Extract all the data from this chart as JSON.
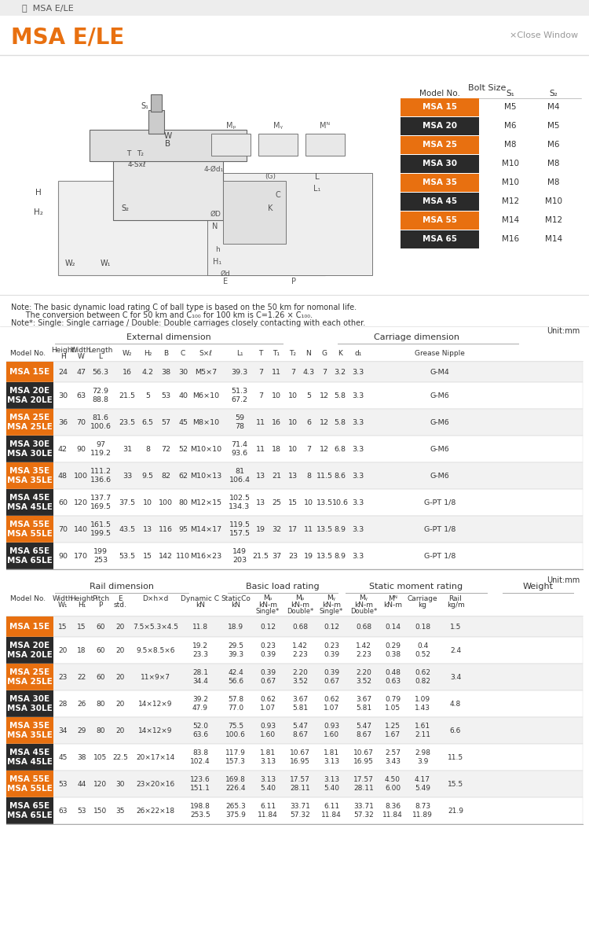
{
  "title": "MSA E/LE",
  "tab_title": "MSA E/LE",
  "close_window": "×Close Window",
  "note1": "Note: The basic dynamic load rating C of ball type is based on the 50 km for nomonal life.",
  "note2": "      The conversion between C for 50 km and C₁₀₀ for 100 km is C=1.26 × C₁₀₀.",
  "note3": "Note*: Single: Single carriage / Double: Double carriages closely contacting with each other.",
  "unit": "Unit:mm",
  "bolt_size_header": "Bolt Size",
  "bolt_models": [
    "MSA 15",
    "MSA 20",
    "MSA 25",
    "MSA 30",
    "MSA 35",
    "MSA 45",
    "MSA 55",
    "MSA 65"
  ],
  "bolt_s1_vals": [
    "M5",
    "M6",
    "M8",
    "M10",
    "M10",
    "M12",
    "M14",
    "M16"
  ],
  "bolt_s2_vals": [
    "M4",
    "M5",
    "M6",
    "M8",
    "M8",
    "M10",
    "M12",
    "M14"
  ],
  "bolt_highlight": [
    true,
    false,
    true,
    false,
    true,
    false,
    true,
    false
  ],
  "table1_rows": [
    [
      "MSA 15E",
      "24",
      "47",
      "56.3",
      "16",
      "4.2",
      "38",
      "30",
      "M5×7",
      "39.3",
      "7",
      "11",
      "7",
      "4.3",
      "7",
      "3.2",
      "3.3",
      "G-M4"
    ],
    [
      "MSA 20E\nMSA 20LE",
      "30",
      "63",
      "72.9\n88.8",
      "21.5",
      "5",
      "53",
      "40",
      "M6×10",
      "51.3\n67.2",
      "7",
      "10",
      "10",
      "5",
      "12",
      "5.8",
      "3.3",
      "G-M6"
    ],
    [
      "MSA 25E\nMSA 25LE",
      "36",
      "70",
      "81.6\n100.6",
      "23.5",
      "6.5",
      "57",
      "45",
      "M8×10",
      "59\n78",
      "11",
      "16",
      "10",
      "6",
      "12",
      "5.8",
      "3.3",
      "G-M6"
    ],
    [
      "MSA 30E\nMSA 30LE",
      "42",
      "90",
      "97\n119.2",
      "31",
      "8",
      "72",
      "52",
      "M10×10",
      "71.4\n93.6",
      "11",
      "18",
      "10",
      "7",
      "12",
      "6.8",
      "3.3",
      "G-M6"
    ],
    [
      "MSA 35E\nMSA 35LE",
      "48",
      "100",
      "111.2\n136.6",
      "33",
      "9.5",
      "82",
      "62",
      "M10×13",
      "81\n106.4",
      "13",
      "21",
      "13",
      "8",
      "11.5",
      "8.6",
      "3.3",
      "G-M6"
    ],
    [
      "MSA 45E\nMSA 45LE",
      "60",
      "120",
      "137.7\n169.5",
      "37.5",
      "10",
      "100",
      "80",
      "M12×15",
      "102.5\n134.3",
      "13",
      "25",
      "15",
      "10",
      "13.5",
      "10.6",
      "3.3",
      "G-PT 1/8"
    ],
    [
      "MSA 55E\nMSA 55LE",
      "70",
      "140",
      "161.5\n199.5",
      "43.5",
      "13",
      "116",
      "95",
      "M14×17",
      "119.5\n157.5",
      "19",
      "32",
      "17",
      "11",
      "13.5",
      "8.9",
      "3.3",
      "G-PT 1/8"
    ],
    [
      "MSA 65E\nMSA 65LE",
      "90",
      "170",
      "199\n253",
      "53.5",
      "15",
      "142",
      "110",
      "M16×23",
      "149\n203",
      "21.5",
      "37",
      "23",
      "19",
      "13.5",
      "8.9",
      "3.3",
      "G-PT 1/8"
    ]
  ],
  "table1_highlight": [
    true,
    false,
    true,
    false,
    true,
    false,
    true,
    false
  ],
  "table2_rows": [
    [
      "MSA 15E",
      "15",
      "15",
      "60",
      "20",
      "7.5×5.3×4.5",
      "11.8",
      "18.9",
      "0.12",
      "0.68",
      "0.12",
      "0.68",
      "0.14",
      "0.18",
      "1.5"
    ],
    [
      "MSA 20E\nMSA 20LE",
      "20",
      "18",
      "60",
      "20",
      "9.5×8.5×6",
      "19.2\n23.3",
      "29.5\n39.3",
      "0.23\n0.39",
      "1.42\n2.23",
      "0.23\n0.39",
      "1.42\n2.23",
      "0.29\n0.38",
      "0.4\n0.52",
      "2.4"
    ],
    [
      "MSA 25E\nMSA 25LE",
      "23",
      "22",
      "60",
      "20",
      "11×9×7",
      "28.1\n34.4",
      "42.4\n56.6",
      "0.39\n0.67",
      "2.20\n3.52",
      "0.39\n0.67",
      "2.20\n3.52",
      "0.48\n0.63",
      "0.62\n0.82",
      "3.4"
    ],
    [
      "MSA 30E\nMSA 30LE",
      "28",
      "26",
      "80",
      "20",
      "14×12×9",
      "39.2\n47.9",
      "57.8\n77.0",
      "0.62\n1.07",
      "3.67\n5.81",
      "0.62\n1.07",
      "3.67\n5.81",
      "0.79\n1.05",
      "1.09\n1.43",
      "4.8"
    ],
    [
      "MSA 35E\nMSA 35LE",
      "34",
      "29",
      "80",
      "20",
      "14×12×9",
      "52.0\n63.6",
      "75.5\n100.6",
      "0.93\n1.60",
      "5.47\n8.67",
      "0.93\n1.60",
      "5.47\n8.67",
      "1.25\n1.67",
      "1.61\n2.11",
      "6.6"
    ],
    [
      "MSA 45E\nMSA 45LE",
      "45",
      "38",
      "105",
      "22.5",
      "20×17×14",
      "83.8\n102.4",
      "117.9\n157.3",
      "1.81\n3.13",
      "10.67\n16.95",
      "1.81\n3.13",
      "10.67\n16.95",
      "2.57\n3.43",
      "2.98\n3.9",
      "11.5"
    ],
    [
      "MSA 55E\nMSA 55LE",
      "53",
      "44",
      "120",
      "30",
      "23×20×16",
      "123.6\n151.1",
      "169.8\n226.4",
      "3.13\n5.40",
      "17.57\n28.11",
      "3.13\n5.40",
      "17.57\n28.11",
      "4.50\n6.00",
      "4.17\n5.49",
      "15.5"
    ],
    [
      "MSA 65E\nMSA 65LE",
      "63",
      "53",
      "150",
      "35",
      "26×22×18",
      "198.8\n253.5",
      "265.3\n375.9",
      "6.11\n11.84",
      "33.71\n57.32",
      "6.11\n11.84",
      "33.71\n57.32",
      "8.36\n11.84",
      "8.73\n11.89",
      "21.9"
    ]
  ],
  "table2_highlight": [
    true,
    false,
    true,
    false,
    true,
    false,
    true,
    false
  ],
  "orange_color": "#E87010",
  "dark_bg": "#2A2A2A",
  "light_row": "#F2F2F2",
  "white_row": "#FFFFFF",
  "border_color": "#DDDDDD",
  "text_color": "#333333"
}
